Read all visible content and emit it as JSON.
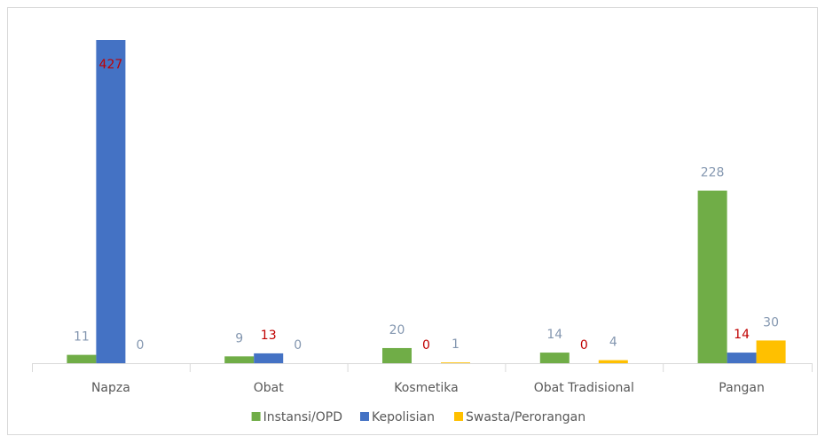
{
  "chart_data": {
    "type": "bar",
    "categories": [
      "Napza",
      "Obat",
      "Kosmetika",
      "Obat Tradisional",
      "Pangan"
    ],
    "series": [
      {
        "name": "Instansi/OPD",
        "color": "#70ad47",
        "label_color": "#8497b0",
        "values": [
          11,
          9,
          20,
          14,
          228
        ]
      },
      {
        "name": "Kepolisian",
        "color": "#4472c4",
        "label_color": "#c00000",
        "values": [
          427,
          13,
          0,
          0,
          14
        ]
      },
      {
        "name": "Swasta/Perorangan",
        "color": "#ffc000",
        "label_color": "#8497b0",
        "values": [
          0,
          0,
          1,
          4,
          30
        ]
      }
    ],
    "legend": "bottom"
  }
}
